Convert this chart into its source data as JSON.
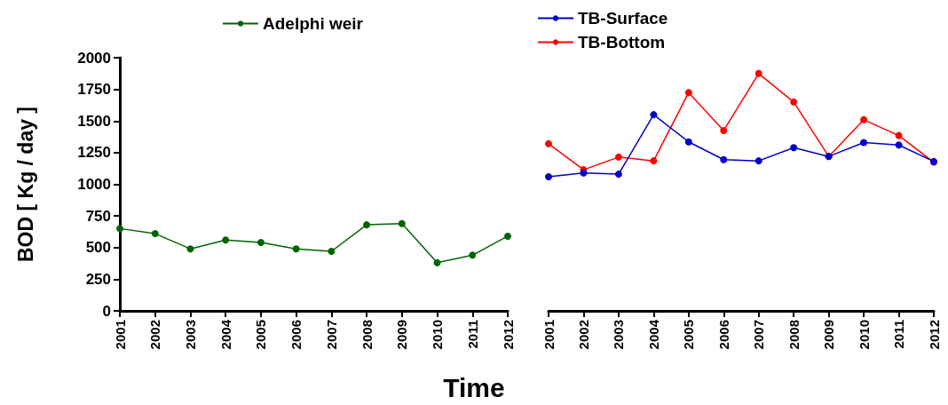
{
  "chart_data": [
    {
      "type": "line",
      "ylabel": "BOD [ Kg / day ]",
      "xlabel": "Time",
      "categories": [
        "2001",
        "2002",
        "2003",
        "2004",
        "2005",
        "2006",
        "2007",
        "2008",
        "2009",
        "2010",
        "2011",
        "2012"
      ],
      "ylim": [
        0,
        2000
      ],
      "yticks": [
        0,
        250,
        500,
        750,
        1000,
        1250,
        1500,
        1750,
        2000
      ],
      "grid": false,
      "legend": "top",
      "marker": "circle",
      "line_style": "solid",
      "series": [
        {
          "name": "Adelphi weir",
          "color": "#006400",
          "values": [
            650,
            610,
            490,
            560,
            540,
            490,
            470,
            680,
            690,
            380,
            440,
            590
          ]
        }
      ]
    },
    {
      "type": "line",
      "categories": [
        "2001",
        "2002",
        "2003",
        "2004",
        "2005",
        "2006",
        "2007",
        "2008",
        "2009",
        "2010",
        "2011",
        "2012"
      ],
      "ylim": [
        0,
        2000
      ],
      "yticks": [
        0,
        250,
        500,
        750,
        1000,
        1250,
        1500,
        1750,
        2000
      ],
      "tick_labels": "x",
      "grid": false,
      "legend": "top left",
      "marker": "circle",
      "line_style": "solid",
      "series": [
        {
          "name": "TB-Surface",
          "color": "#0000cc",
          "values": [
            1060,
            1090,
            1080,
            1550,
            1335,
            1195,
            1185,
            1290,
            1220,
            1330,
            1310,
            1180
          ]
        },
        {
          "name": "TB-Bottom",
          "color": "#ff0000",
          "values": [
            1320,
            1115,
            1215,
            1185,
            1725,
            1425,
            1875,
            1650,
            1220,
            1510,
            1385,
            1175
          ]
        }
      ]
    }
  ]
}
